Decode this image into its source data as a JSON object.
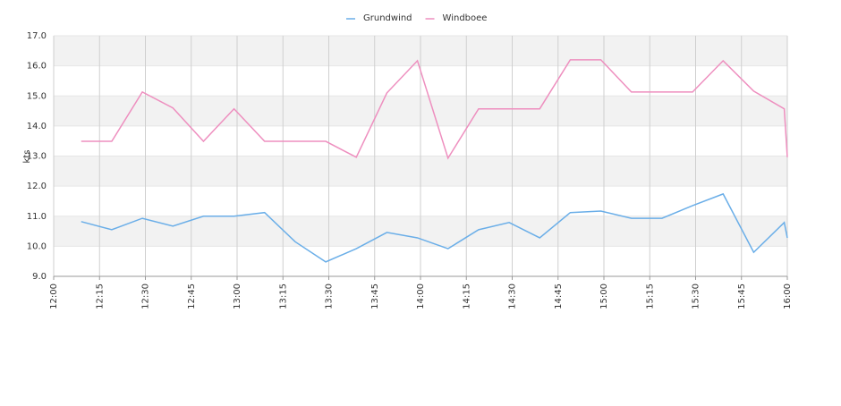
{
  "chart_data": {
    "type": "line",
    "y_label": "kts",
    "x": [
      "12:09",
      "12:19",
      "12:29",
      "12:39",
      "12:49",
      "12:59",
      "13:09",
      "13:19",
      "13:29",
      "13:39",
      "13:49",
      "13:59",
      "14:09",
      "14:19",
      "14:29",
      "14:39",
      "14:49",
      "14:59",
      "15:09",
      "15:19",
      "15:29",
      "15:39",
      "15:49",
      "15:59",
      "16:00"
    ],
    "series": [
      {
        "name": "Grundwind",
        "color": "#6aaee8",
        "values": [
          10.82,
          10.55,
          10.93,
          10.67,
          11.0,
          11.0,
          11.12,
          10.15,
          9.48,
          9.92,
          10.46,
          10.28,
          9.92,
          10.55,
          10.79,
          10.28,
          11.12,
          11.17,
          10.93,
          10.93,
          11.35,
          11.74,
          9.8,
          10.79,
          10.28
        ]
      },
      {
        "name": "Windboee",
        "color": "#ee8fbf",
        "values": [
          13.49,
          13.49,
          15.13,
          14.6,
          13.49,
          14.57,
          13.49,
          13.49,
          13.49,
          12.96,
          15.1,
          16.17,
          12.93,
          14.57,
          14.57,
          14.57,
          16.2,
          16.2,
          15.13,
          15.13,
          15.13,
          16.17,
          15.16,
          14.57,
          12.96
        ]
      }
    ],
    "xlim": [
      "12:00",
      "16:00"
    ],
    "xticks": [
      "12:00",
      "12:15",
      "12:30",
      "12:45",
      "13:00",
      "13:15",
      "13:30",
      "13:45",
      "14:00",
      "14:15",
      "14:30",
      "14:45",
      "15:00",
      "15:15",
      "15:30",
      "15:45",
      "16:00"
    ],
    "ylim": [
      9,
      17
    ],
    "yticks": [
      {
        "value": 9,
        "label": "9.0"
      },
      {
        "value": 10,
        "label": "10.0"
      },
      {
        "value": 11,
        "label": "11.0"
      },
      {
        "value": 12,
        "label": "12.0"
      },
      {
        "value": 13,
        "label": "13.0"
      },
      {
        "value": 14,
        "label": "14.0"
      },
      {
        "value": 15,
        "label": "15.0"
      },
      {
        "value": 16,
        "label": "16.0"
      },
      {
        "value": 17,
        "label": "17.0"
      }
    ],
    "grid": true,
    "legend": "top"
  }
}
